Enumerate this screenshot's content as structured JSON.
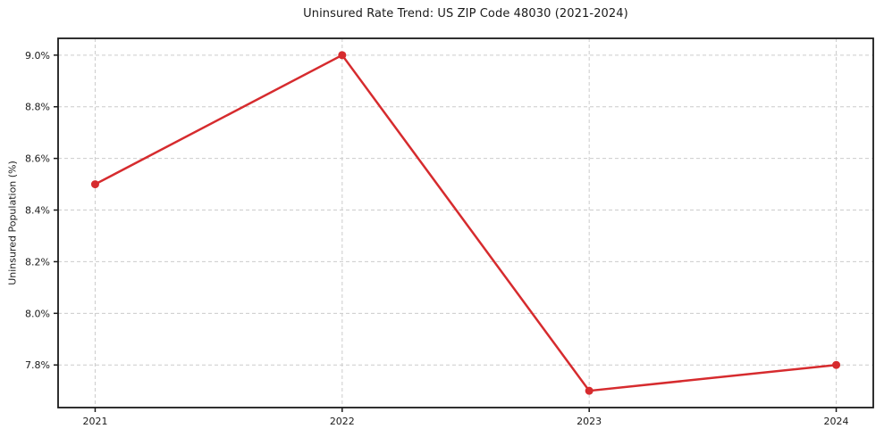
{
  "chart_data": {
    "type": "line",
    "title": "Uninsured Rate Trend: US ZIP Code 48030 (2021-2024)",
    "xlabel": "",
    "ylabel": "Uninsured Population (%)",
    "x": [
      2021,
      2022,
      2023,
      2024
    ],
    "series": [
      {
        "name": "uninsured-rate",
        "values": [
          8.5,
          9.0,
          7.7,
          7.8
        ],
        "color": "#d62b2e",
        "marker": "circle"
      }
    ],
    "xticks": [
      2021,
      2022,
      2023,
      2024
    ],
    "xtick_labels": [
      "2021",
      "2022",
      "2023",
      "2024"
    ],
    "yticks": [
      7.8,
      8.0,
      8.2,
      8.4,
      8.6,
      8.8,
      9.0
    ],
    "ytick_labels": [
      "7.8%",
      "8.0%",
      "8.2%",
      "8.4%",
      "8.6%",
      "8.8%",
      "9.0%"
    ],
    "xlim": [
      2020.85,
      2024.15
    ],
    "ylim": [
      7.635,
      9.065
    ],
    "grid": "both",
    "grid_style": "dashed",
    "legend": "none",
    "grid_color": "#cccccc",
    "axis_color": "#1a1a1a",
    "text_color": "#1a1a1a",
    "background_color": "#ffffff"
  }
}
